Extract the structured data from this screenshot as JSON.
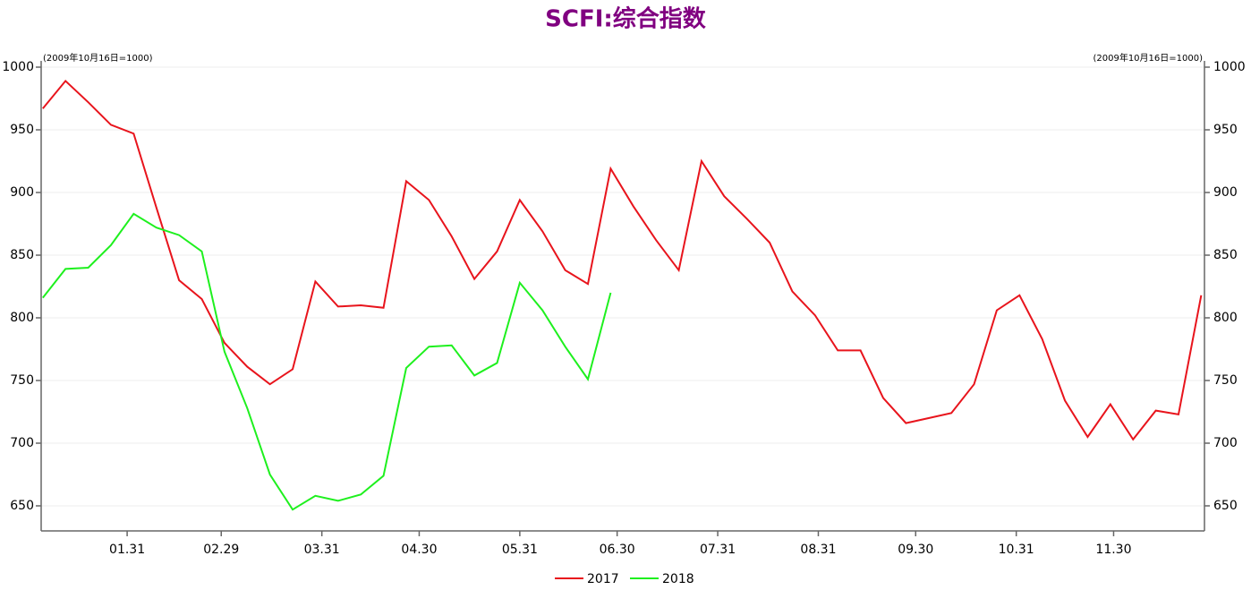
{
  "chart_data": {
    "type": "line",
    "title": "SCFI:综合指数",
    "y_note": "(2009年10月16日=1000)",
    "x": [
      5,
      12,
      19,
      26,
      33,
      40,
      47,
      54,
      61,
      68,
      75,
      82,
      89,
      96,
      103,
      110,
      117,
      124,
      131,
      138,
      145,
      152,
      159,
      166,
      173,
      180,
      187,
      194,
      201,
      208,
      215,
      222,
      229,
      236,
      243,
      250,
      257,
      264,
      271,
      278,
      285,
      292,
      299,
      306,
      313,
      320,
      327,
      334,
      341,
      348,
      355,
      362
    ],
    "xlim": [
      4.5,
      363
    ],
    "xticks": [
      {
        "value": 31,
        "label": "01.31"
      },
      {
        "value": 60,
        "label": "02.29"
      },
      {
        "value": 91,
        "label": "03.31"
      },
      {
        "value": 121,
        "label": "04.30"
      },
      {
        "value": 152,
        "label": "05.31"
      },
      {
        "value": 182,
        "label": "06.30"
      },
      {
        "value": 213,
        "label": "07.31"
      },
      {
        "value": 244,
        "label": "08.31"
      },
      {
        "value": 274,
        "label": "09.30"
      },
      {
        "value": 305,
        "label": "10.31"
      },
      {
        "value": 335,
        "label": "11.30"
      }
    ],
    "ylim": [
      630,
      1005
    ],
    "yticks": [
      650,
      700,
      750,
      800,
      850,
      900,
      950,
      1000
    ],
    "grid": true,
    "series": [
      {
        "name": "2017",
        "color": "#e8141c",
        "values": [
          967,
          989,
          972,
          954,
          947,
          888,
          830,
          815,
          780,
          761,
          747,
          759,
          829,
          809,
          810,
          808,
          909,
          894,
          865,
          831,
          853,
          894,
          869,
          838,
          827,
          919,
          889,
          862,
          838,
          925,
          897,
          879,
          860,
          821,
          802,
          774,
          774,
          736,
          716,
          720,
          724,
          747,
          806,
          818,
          783,
          734,
          705,
          731,
          703,
          726,
          723,
          818
        ]
      },
      {
        "name": "2018",
        "color": "#1ef01e",
        "values": [
          816,
          839,
          840,
          858,
          883,
          872,
          866,
          853,
          773,
          728,
          675,
          647,
          658,
          654,
          659,
          674,
          760,
          777,
          778,
          754,
          764,
          828,
          806,
          777,
          751,
          820,
          null,
          null,
          null,
          null,
          null,
          null,
          null,
          null,
          null,
          null,
          null,
          null,
          null,
          null,
          null,
          null,
          null,
          null,
          null,
          null,
          null,
          null,
          null,
          null,
          null,
          null
        ]
      }
    ],
    "legend": "bottom"
  }
}
